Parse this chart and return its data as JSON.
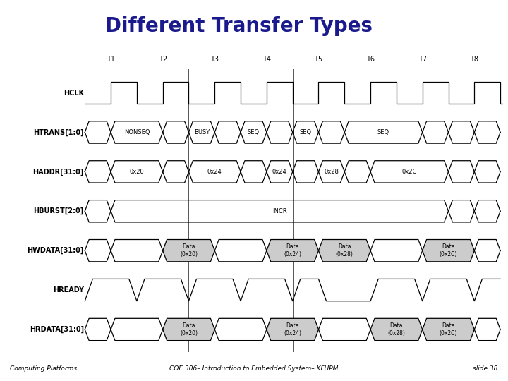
{
  "title": "Different Transfer Types",
  "title_color": "#1a1a8c",
  "title_bg": "#b8bcec",
  "footer_bg": "#ffffcc",
  "footer_left": "Computing Platforms",
  "footer_center": "COE 306– Introduction to Embedded System– KFUPM",
  "footer_right": "slide 38",
  "main_bg": "#ffffff",
  "signal_names": [
    "HCLK",
    "HTRANS[1:0]",
    "HADDR[31:0]",
    "HBURST[2:0]",
    "HWDATA[31:0]",
    "HREADY",
    "HRDATA[31:0]"
  ],
  "time_labels": [
    "T1",
    "T2",
    "T3",
    "T4",
    "T5",
    "T6",
    "T7",
    "T8"
  ],
  "signal_color": "#000000",
  "bus_fill": "#cccccc",
  "lw": 0.9
}
